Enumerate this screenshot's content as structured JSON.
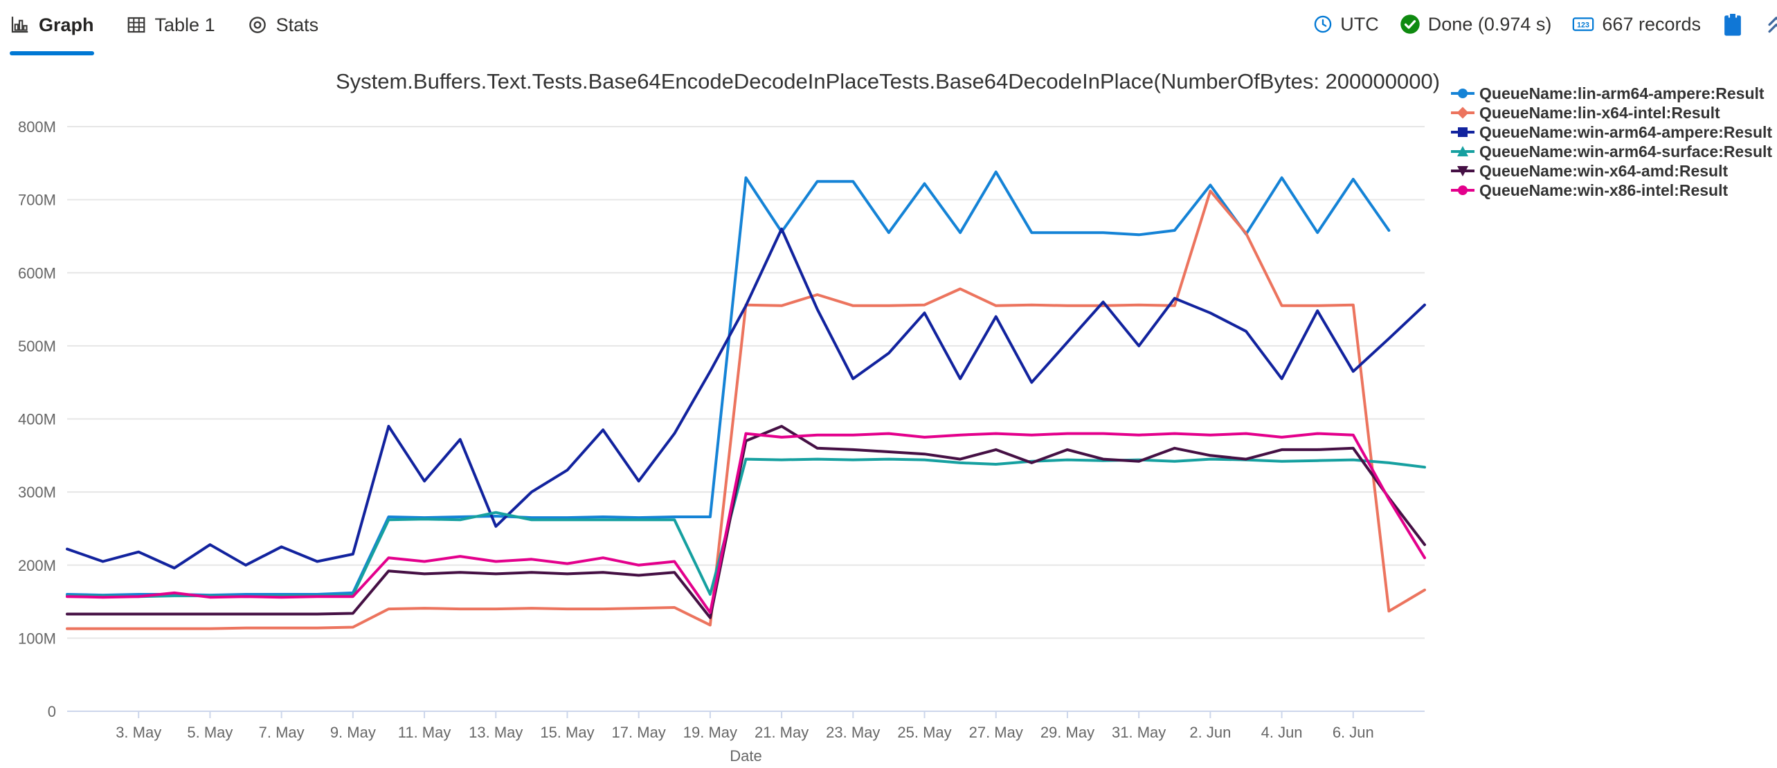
{
  "toolbar": {
    "accent_color": "#0078d4",
    "success_color": "#0f8a10",
    "icon_color": "#3b3a39",
    "tabs": [
      {
        "label": "Graph",
        "icon": "bar-chart-icon",
        "active": true
      },
      {
        "label": "Table 1",
        "icon": "table-icon",
        "active": false
      },
      {
        "label": "Stats",
        "icon": "donut-icon",
        "active": false
      }
    ],
    "timezone_label": "UTC",
    "status_label": "Done (0.974 s)",
    "records_label": "667 records",
    "records_icon_text": "123"
  },
  "chart_data": {
    "type": "line",
    "title": "System.Buffers.Text.Tests.Base64EncodeDecodeInPlaceTests.Base64DecodeInPlace(NumberOfBytes: 200000000)",
    "xlabel": "Date",
    "ylabel": "",
    "y_unit": "M = millions (values below are in millions)",
    "ylim_M": [
      0,
      800
    ],
    "grid": "horizontal",
    "grid_color": "#e6e6e6",
    "axis_color": "#ccd6eb",
    "axis_text_color": "#666666",
    "legend_position": "top-right",
    "y_tick_labels": [
      "0",
      "100M",
      "200M",
      "300M",
      "400M",
      "500M",
      "600M",
      "700M",
      "800M"
    ],
    "x_dates": [
      "1. May",
      "2. May",
      "3. May",
      "4. May",
      "5. May",
      "6. May",
      "7. May",
      "8. May",
      "9. May",
      "10. May",
      "11. May",
      "12. May",
      "13. May",
      "14. May",
      "15. May",
      "16. May",
      "17. May",
      "18. May",
      "19. May",
      "20. May",
      "21. May",
      "22. May",
      "23. May",
      "24. May",
      "25. May",
      "26. May",
      "27. May",
      "28. May",
      "29. May",
      "30. May",
      "31. May",
      "1. Jun",
      "2. Jun",
      "3. Jun",
      "4. Jun",
      "5. Jun",
      "6. Jun",
      "7. Jun",
      "8. Jun"
    ],
    "x_tick_indices": [
      2,
      4,
      6,
      8,
      10,
      12,
      14,
      16,
      18,
      20,
      22,
      24,
      26,
      28,
      30,
      32,
      34,
      36
    ],
    "x_tick_labels": [
      "3. May",
      "5. May",
      "7. May",
      "9. May",
      "11. May",
      "13. May",
      "15. May",
      "17. May",
      "19. May",
      "21. May",
      "23. May",
      "25. May",
      "27. May",
      "29. May",
      "31. May",
      "2. Jun",
      "4. Jun",
      "6. Jun"
    ],
    "series": [
      {
        "name": "QueueName:lin-arm64-ampere:Result",
        "color": "#1583d6",
        "marker": "circle",
        "values_M": [
          160,
          159,
          160,
          160,
          159,
          160,
          160,
          160,
          162,
          266,
          265,
          266,
          267,
          265,
          265,
          266,
          265,
          266,
          266,
          730,
          656,
          725,
          725,
          655,
          722,
          655,
          738,
          655,
          655,
          655,
          652,
          658,
          720,
          653,
          730,
          655,
          728,
          658,
          null
        ]
      },
      {
        "name": "QueueName:lin-x64-intel:Result",
        "color": "#ec745e",
        "marker": "diamond",
        "values_M": [
          113,
          113,
          113,
          113,
          113,
          114,
          114,
          114,
          115,
          140,
          141,
          140,
          140,
          141,
          140,
          140,
          141,
          142,
          118,
          556,
          555,
          570,
          555,
          555,
          556,
          578,
          555,
          556,
          555,
          555,
          556,
          555,
          712,
          654,
          555,
          555,
          556,
          137,
          166
        ]
      },
      {
        "name": "QueueName:win-arm64-ampere:Result",
        "color": "#12239e",
        "marker": "square",
        "values_M": [
          222,
          205,
          218,
          196,
          228,
          200,
          225,
          205,
          215,
          390,
          315,
          372,
          253,
          300,
          330,
          385,
          315,
          380,
          465,
          555,
          660,
          550,
          455,
          490,
          545,
          455,
          540,
          450,
          505,
          560,
          500,
          565,
          545,
          520,
          455,
          548,
          465,
          510,
          556
        ]
      },
      {
        "name": "QueueName:win-arm64-surface:Result",
        "color": "#16a0a0",
        "marker": "triangle-up",
        "values_M": [
          158,
          158,
          157,
          158,
          158,
          157,
          158,
          158,
          159,
          262,
          263,
          262,
          272,
          262,
          262,
          262,
          262,
          262,
          160,
          345,
          344,
          345,
          344,
          345,
          344,
          340,
          338,
          342,
          344,
          343,
          344,
          342,
          345,
          344,
          342,
          343,
          344,
          340,
          334
        ]
      },
      {
        "name": "QueueName:win-x64-amd:Result",
        "color": "#451044",
        "marker": "triangle-down",
        "values_M": [
          133,
          133,
          133,
          133,
          133,
          133,
          133,
          133,
          134,
          192,
          188,
          190,
          188,
          190,
          188,
          190,
          186,
          190,
          128,
          370,
          390,
          360,
          358,
          355,
          352,
          345,
          358,
          340,
          358,
          345,
          342,
          360,
          350,
          345,
          358,
          358,
          360,
          292,
          228
        ]
      },
      {
        "name": "QueueName:win-x86-intel:Result",
        "color": "#e3008c",
        "marker": "circle",
        "values_M": [
          157,
          156,
          157,
          162,
          156,
          157,
          156,
          157,
          157,
          210,
          205,
          212,
          205,
          208,
          202,
          210,
          200,
          205,
          135,
          380,
          375,
          378,
          378,
          380,
          375,
          378,
          380,
          378,
          380,
          380,
          378,
          380,
          378,
          380,
          375,
          380,
          378,
          290,
          210
        ]
      }
    ]
  }
}
